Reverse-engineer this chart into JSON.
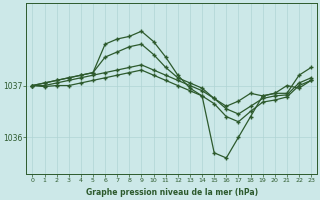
{
  "xlabel": "Graphe pression niveau de la mer (hPa)",
  "background_color": "#cce8e8",
  "grid_color": "#b0d4d4",
  "line_color": "#2d5a2d",
  "marker": "+",
  "x_ticks": [
    0,
    1,
    2,
    3,
    4,
    5,
    6,
    7,
    8,
    9,
    10,
    11,
    12,
    13,
    14,
    15,
    16,
    17,
    18,
    19,
    20,
    21,
    22,
    23
  ],
  "ylim": [
    1035.3,
    1038.6
  ],
  "y_ticks": [
    1036,
    1037
  ],
  "series": [
    [
      1037.0,
      1037.05,
      1037.1,
      1037.15,
      1037.2,
      1037.25,
      1037.55,
      1037.65,
      1037.75,
      1037.8,
      1037.6,
      1037.35,
      1037.15,
      1037.05,
      1036.95,
      1036.75,
      1036.6,
      1036.7,
      1036.85,
      1036.8,
      1036.85,
      1037.0,
      1036.95,
      1037.1
    ],
    [
      1037.0,
      1037.05,
      1037.1,
      1037.15,
      1037.2,
      1037.25,
      1037.8,
      1037.9,
      1037.95,
      1038.05,
      1037.85,
      1037.55,
      1037.2,
      1036.95,
      1036.8,
      1035.7,
      1035.6,
      1036.0,
      1036.4,
      1036.8,
      1036.85,
      1036.85,
      1037.2,
      1037.35
    ],
    [
      1037.0,
      1037.0,
      1037.05,
      1037.1,
      1037.15,
      1037.2,
      1037.25,
      1037.3,
      1037.35,
      1037.4,
      1037.3,
      1037.2,
      1037.1,
      1037.0,
      1036.9,
      1036.75,
      1036.55,
      1036.45,
      1036.6,
      1036.75,
      1036.8,
      1036.82,
      1037.05,
      1037.15
    ],
    [
      1037.0,
      1036.98,
      1037.0,
      1037.0,
      1037.05,
      1037.1,
      1037.15,
      1037.2,
      1037.25,
      1037.3,
      1037.2,
      1037.1,
      1037.0,
      1036.9,
      1036.8,
      1036.65,
      1036.4,
      1036.3,
      1036.5,
      1036.68,
      1036.72,
      1036.78,
      1037.0,
      1037.1
    ]
  ]
}
